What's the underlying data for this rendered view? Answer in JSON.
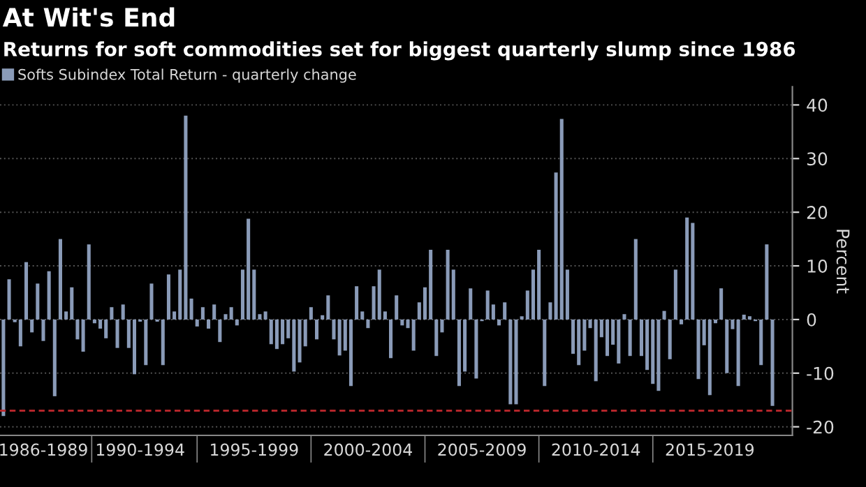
{
  "chart_data": {
    "type": "bar",
    "title": "At Wit's End",
    "subtitle": "Returns for soft commodities set for biggest quarterly slump since 1986",
    "ylabel": "Percent",
    "categories": [
      null,
      null,
      null,
      null,
      null,
      null,
      null,
      "1986-1989",
      null,
      null,
      null,
      null,
      null,
      null,
      null,
      null,
      null,
      null,
      null,
      null,
      null,
      null,
      null,
      null,
      "1990-1994",
      null,
      null,
      null,
      null,
      null,
      null,
      null,
      null,
      null,
      null,
      null,
      null,
      null,
      null,
      null,
      null,
      null,
      null,
      null,
      "1995-1999",
      null,
      null,
      null,
      null,
      null,
      null,
      null,
      null,
      null,
      null,
      null,
      null,
      null,
      null,
      null,
      null,
      null,
      null,
      null,
      "2000-2004",
      null,
      null,
      null,
      null,
      null,
      null,
      null,
      null,
      null,
      null,
      null,
      null,
      null,
      null,
      null,
      null,
      null,
      null,
      null,
      "2005-2009",
      null,
      null,
      null,
      null,
      null,
      null,
      null,
      null,
      null,
      null,
      null,
      null,
      null,
      null,
      null,
      null,
      null,
      null,
      null,
      "2010-2014",
      null,
      null,
      null,
      null,
      null,
      null,
      null,
      null,
      null,
      null,
      null,
      null,
      null,
      null,
      null,
      null,
      null,
      null,
      null,
      "2015-2019",
      null,
      null,
      null,
      null,
      null,
      null,
      null,
      null,
      null,
      null,
      null
    ],
    "series": [
      {
        "name": "Softs Subindex Total Return - quarterly change",
        "color": "#8a9bb8",
        "values": [
          -18,
          7.5,
          -0.5,
          -5,
          10.7,
          -2.4,
          6.7,
          -4,
          9,
          -14.3,
          15,
          1.5,
          6,
          -3.7,
          -6,
          14,
          -0.7,
          -1.7,
          -3.5,
          2.3,
          -5.3,
          2.8,
          -5.3,
          -10.2,
          -0.4,
          -8.5,
          6.7,
          -0.4,
          -8.5,
          8.4,
          1.5,
          9.3,
          38,
          3.9,
          -1.3,
          2.3,
          -1.7,
          2.8,
          -4.2,
          1,
          2.3,
          -1.1,
          9.3,
          18.8,
          9.3,
          1,
          1.5,
          -4.6,
          -5.5,
          -4.6,
          -3.5,
          -9.7,
          -8,
          -5,
          2.3,
          -3.7,
          0.8,
          4.5,
          -3.7,
          -6.7,
          -5.8,
          -12.4,
          6.2,
          1.5,
          -1.6,
          6.2,
          9.3,
          1.5,
          -7.2,
          4.5,
          -1.1,
          -1.6,
          -5.8,
          3.2,
          6,
          13,
          -6.8,
          -2.4,
          13,
          9.3,
          -12.4,
          -9.7,
          5.8,
          -11,
          -0.3,
          5.4,
          2.8,
          -1.1,
          3.2,
          -15.8,
          -15.8,
          0.6,
          5.4,
          9.3,
          13,
          -12.4,
          3.2,
          27.4,
          37.4,
          9.3,
          -6.4,
          -8.5,
          -5.8,
          -1.6,
          -11.5,
          -3.3,
          -6.8,
          -4.7,
          -8.2,
          1,
          -6.8,
          15,
          -6.8,
          -9.4,
          -12,
          -13.3,
          1.6,
          -7.4,
          9.3,
          -0.9,
          19,
          18,
          -11.1,
          -4.8,
          -14.1,
          -0.7,
          5.8,
          -10,
          -1.8,
          -12.4,
          0.9,
          0.6,
          -0.3,
          -8.5,
          14,
          -16.1
        ]
      }
    ],
    "ref_lines": [
      {
        "axis": "y",
        "value": -17,
        "color": "#c0282d",
        "line_style": "dashed"
      }
    ],
    "ylim": [
      -21.6,
      43.4
    ],
    "yticks": [
      -20,
      -10,
      0,
      10,
      20,
      30,
      40
    ],
    "grid": "y",
    "legend": "top left"
  }
}
